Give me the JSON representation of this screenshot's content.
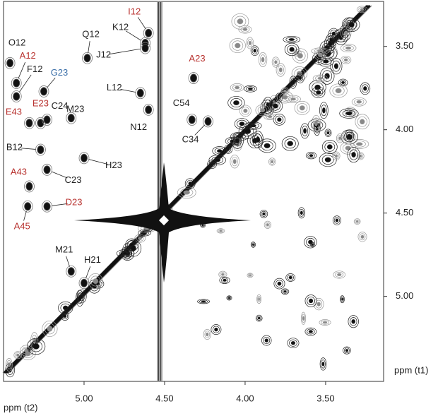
{
  "chart_data": {
    "type": "nmr2d",
    "xlabel": "ppm (t2)",
    "ylabel": "ppm (t1)",
    "xlim": [
      5.5,
      3.14
    ],
    "ylim": [
      3.23,
      5.51
    ],
    "xticks": [
      {
        "value": 5,
        "label": "5.00"
      },
      {
        "value": 4.5,
        "label": "4.50"
      },
      {
        "value": 4,
        "label": "4.00"
      },
      {
        "value": 3.5,
        "label": "3.50"
      }
    ],
    "yticks": [
      {
        "value": 3.5,
        "label": "3.50"
      },
      {
        "value": 4,
        "label": "4.00"
      },
      {
        "value": 4.5,
        "label": "4.50"
      },
      {
        "value": 5,
        "label": "5.00"
      }
    ],
    "peaks": [
      {
        "label": "O12",
        "x": 5.46,
        "y": 3.6,
        "color": "#222222"
      },
      {
        "label": "A12",
        "x": 5.42,
        "y": 3.72,
        "color": "#b8322f"
      },
      {
        "label": "F12",
        "x": 5.42,
        "y": 3.8,
        "color": "#222222"
      },
      {
        "label": "G23",
        "x": 5.25,
        "y": 3.77,
        "color": "#3b6fa8"
      },
      {
        "label": "E43",
        "x": 5.34,
        "y": 3.96,
        "color": "#b8322f"
      },
      {
        "label": "E23",
        "x": 5.27,
        "y": 3.96,
        "color": "#b8322f"
      },
      {
        "label": "C24",
        "x": 5.23,
        "y": 3.94,
        "color": "#222222"
      },
      {
        "label": "M23",
        "x": 5.08,
        "y": 3.93,
        "color": "#222222"
      },
      {
        "label": "Q12",
        "x": 4.98,
        "y": 3.57,
        "color": "#222222"
      },
      {
        "label": "K12",
        "x": 4.62,
        "y": 3.48,
        "color": "#222222"
      },
      {
        "label": "I12",
        "x": 4.6,
        "y": 3.42,
        "color": "#b8322f"
      },
      {
        "label": "J12",
        "x": 4.62,
        "y": 3.51,
        "color": "#222222"
      },
      {
        "label": "L12",
        "x": 4.65,
        "y": 3.78,
        "color": "#222222"
      },
      {
        "label": "N12",
        "x": 4.6,
        "y": 3.88,
        "color": "#222222"
      },
      {
        "label": "A23",
        "x": 4.32,
        "y": 3.69,
        "color": "#b8322f"
      },
      {
        "label": "C54",
        "x": 4.33,
        "y": 3.94,
        "color": "#222222"
      },
      {
        "label": "C34",
        "x": 4.23,
        "y": 3.95,
        "color": "#222222"
      },
      {
        "label": "B12",
        "x": 5.27,
        "y": 4.12,
        "color": "#222222"
      },
      {
        "label": "H23",
        "x": 5.0,
        "y": 4.17,
        "color": "#222222"
      },
      {
        "label": "C23",
        "x": 5.23,
        "y": 4.24,
        "color": "#222222"
      },
      {
        "label": "A43",
        "x": 5.34,
        "y": 4.34,
        "color": "#b8322f"
      },
      {
        "label": "D23",
        "x": 5.23,
        "y": 4.46,
        "color": "#b8322f"
      },
      {
        "label": "A45",
        "x": 5.35,
        "y": 4.46,
        "color": "#b8322f"
      },
      {
        "label": "M21",
        "x": 5.08,
        "y": 4.85,
        "color": "#222222"
      },
      {
        "label": "H21",
        "x": 5.0,
        "y": 4.92,
        "color": "#222222"
      }
    ]
  }
}
